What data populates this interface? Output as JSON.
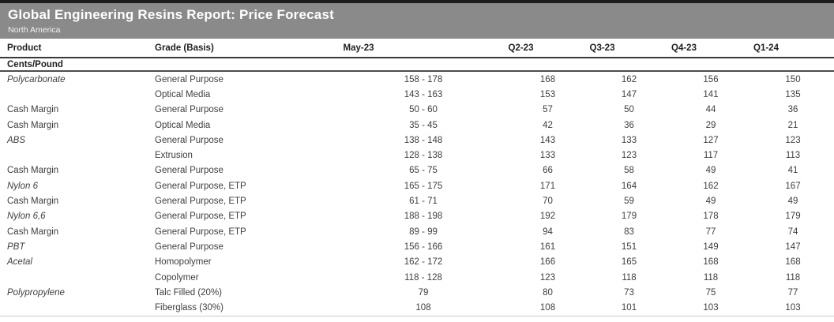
{
  "header": {
    "title": "Global Engineering Resins Report: Price Forecast",
    "subtitle": "North America"
  },
  "table": {
    "unit_label": "Cents/Pound",
    "columns": [
      {
        "label": "Product"
      },
      {
        "label": "Grade (Basis)"
      },
      {
        "label": "May-23"
      },
      {
        "label": "Q2-23"
      },
      {
        "label": "Q3-23"
      },
      {
        "label": "Q4-23"
      },
      {
        "label": "Q1-24"
      }
    ],
    "rows": [
      {
        "product": "Polycarbonate",
        "italic": true,
        "grade": "General Purpose",
        "values": [
          "158 - 178",
          "168",
          "162",
          "156",
          "150"
        ]
      },
      {
        "product": "",
        "italic": false,
        "grade": "Optical Media",
        "values": [
          "143 - 163",
          "153",
          "147",
          "141",
          "135"
        ]
      },
      {
        "product": "Cash Margin",
        "italic": false,
        "grade": "General Purpose",
        "values": [
          "50 - 60",
          "57",
          "50",
          "44",
          "36"
        ]
      },
      {
        "product": "Cash Margin",
        "italic": false,
        "grade": "Optical Media",
        "values": [
          "35 - 45",
          "42",
          "36",
          "29",
          "21"
        ]
      },
      {
        "product": "ABS",
        "italic": true,
        "grade": "General Purpose",
        "values": [
          "138 - 148",
          "143",
          "133",
          "127",
          "123"
        ]
      },
      {
        "product": "",
        "italic": false,
        "grade": "Extrusion",
        "values": [
          "128 - 138",
          "133",
          "123",
          "117",
          "113"
        ]
      },
      {
        "product": "Cash Margin",
        "italic": false,
        "grade": "General Purpose",
        "values": [
          "65 - 75",
          "66",
          "58",
          "49",
          "41"
        ]
      },
      {
        "product": "Nylon 6",
        "italic": true,
        "grade": "General Purpose, ETP",
        "values": [
          "165 - 175",
          "171",
          "164",
          "162",
          "167"
        ]
      },
      {
        "product": "Cash Margin",
        "italic": false,
        "grade": "General Purpose, ETP",
        "values": [
          "61 - 71",
          "70",
          "59",
          "49",
          "49"
        ]
      },
      {
        "product": "Nylon 6,6",
        "italic": true,
        "grade": "General Purpose, ETP",
        "values": [
          "188 - 198",
          "192",
          "179",
          "178",
          "179"
        ]
      },
      {
        "product": "Cash Margin",
        "italic": false,
        "grade": "General Purpose, ETP",
        "values": [
          "89 - 99",
          "94",
          "83",
          "77",
          "74"
        ]
      },
      {
        "product": "PBT",
        "italic": true,
        "grade": "General Purpose",
        "values": [
          "156 - 166",
          "161",
          "151",
          "149",
          "147"
        ]
      },
      {
        "product": "Acetal",
        "italic": true,
        "grade": "Homopolymer",
        "values": [
          "162 - 172",
          "166",
          "165",
          "168",
          "168"
        ]
      },
      {
        "product": "",
        "italic": false,
        "grade": "Copolymer",
        "values": [
          "118 - 128",
          "123",
          "118",
          "118",
          "118"
        ]
      },
      {
        "product": "Polypropylene",
        "italic": true,
        "grade": "Talc Filled (20%)",
        "values": [
          "79",
          "80",
          "73",
          "75",
          "77"
        ]
      },
      {
        "product": "",
        "italic": false,
        "grade": "Fiberglass (30%)",
        "values": [
          "108",
          "108",
          "101",
          "103",
          "103"
        ]
      }
    ]
  },
  "colors": {
    "title_bar_bg": "#8a8a8a",
    "title_text": "#ffffff",
    "top_border": "#1d1d1d",
    "header_rule": "#383838",
    "section_rule": "#4c4c4c",
    "bottom_rule": "#c7cbd8",
    "body_text": "#3e3e3e"
  }
}
